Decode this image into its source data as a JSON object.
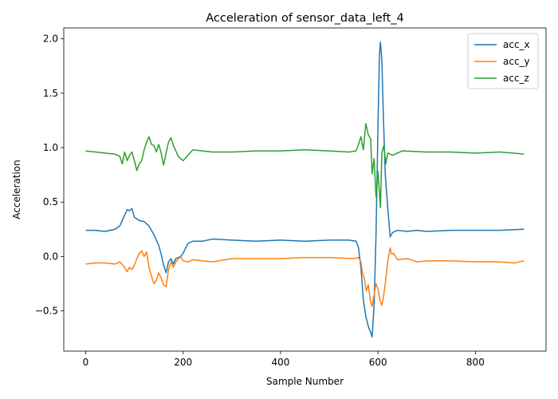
{
  "chart_data": {
    "type": "line",
    "title": "Acceleration of sensor_data_left_4",
    "xlabel": "Sample Number",
    "ylabel": "Acceleration",
    "xlim": [
      -45,
      945
    ],
    "ylim": [
      -0.87,
      2.1
    ],
    "x_ticks": [
      0,
      200,
      400,
      600,
      800
    ],
    "x_tick_labels": [
      "0",
      "200",
      "400",
      "600",
      "800"
    ],
    "y_ticks": [
      -0.5,
      0.0,
      0.5,
      1.0,
      1.5,
      2.0
    ],
    "y_tick_labels": [
      "−0.5",
      "0.0",
      "0.5",
      "1.0",
      "1.5",
      "2.0"
    ],
    "grid": false,
    "legend": {
      "position": "top-right"
    },
    "series": [
      {
        "name": "acc_x",
        "color": "#1f77b4",
        "points": [
          [
            0,
            0.24
          ],
          [
            20,
            0.24
          ],
          [
            40,
            0.23
          ],
          [
            60,
            0.25
          ],
          [
            70,
            0.28
          ],
          [
            80,
            0.38
          ],
          [
            85,
            0.43
          ],
          [
            90,
            0.42
          ],
          [
            95,
            0.44
          ],
          [
            100,
            0.36
          ],
          [
            110,
            0.33
          ],
          [
            120,
            0.32
          ],
          [
            130,
            0.28
          ],
          [
            140,
            0.2
          ],
          [
            150,
            0.1
          ],
          [
            155,
            0.02
          ],
          [
            160,
            -0.08
          ],
          [
            165,
            -0.15
          ],
          [
            170,
            -0.05
          ],
          [
            175,
            -0.02
          ],
          [
            180,
            -0.07
          ],
          [
            185,
            -0.02
          ],
          [
            195,
            0.0
          ],
          [
            200,
            0.03
          ],
          [
            210,
            0.12
          ],
          [
            220,
            0.14
          ],
          [
            240,
            0.14
          ],
          [
            260,
            0.16
          ],
          [
            300,
            0.15
          ],
          [
            350,
            0.14
          ],
          [
            400,
            0.15
          ],
          [
            450,
            0.14
          ],
          [
            500,
            0.15
          ],
          [
            540,
            0.15
          ],
          [
            555,
            0.14
          ],
          [
            560,
            0.08
          ],
          [
            565,
            -0.1
          ],
          [
            570,
            -0.4
          ],
          [
            575,
            -0.55
          ],
          [
            580,
            -0.64
          ],
          [
            585,
            -0.7
          ],
          [
            588,
            -0.74
          ],
          [
            592,
            -0.45
          ],
          [
            596,
            0.2
          ],
          [
            600,
            1.2
          ],
          [
            603,
            1.85
          ],
          [
            605,
            1.97
          ],
          [
            608,
            1.8
          ],
          [
            611,
            1.3
          ],
          [
            615,
            0.75
          ],
          [
            620,
            0.45
          ],
          [
            625,
            0.18
          ],
          [
            630,
            0.22
          ],
          [
            640,
            0.24
          ],
          [
            660,
            0.23
          ],
          [
            680,
            0.24
          ],
          [
            700,
            0.23
          ],
          [
            750,
            0.24
          ],
          [
            800,
            0.24
          ],
          [
            850,
            0.24
          ],
          [
            900,
            0.25
          ]
        ]
      },
      {
        "name": "acc_y",
        "color": "#ff7f0e",
        "points": [
          [
            0,
            -0.07
          ],
          [
            20,
            -0.06
          ],
          [
            40,
            -0.06
          ],
          [
            60,
            -0.07
          ],
          [
            70,
            -0.05
          ],
          [
            80,
            -0.1
          ],
          [
            85,
            -0.14
          ],
          [
            90,
            -0.1
          ],
          [
            95,
            -0.12
          ],
          [
            100,
            -0.08
          ],
          [
            105,
            -0.02
          ],
          [
            110,
            0.03
          ],
          [
            115,
            0.05
          ],
          [
            120,
            0.0
          ],
          [
            125,
            0.04
          ],
          [
            130,
            -0.1
          ],
          [
            135,
            -0.18
          ],
          [
            140,
            -0.25
          ],
          [
            145,
            -0.22
          ],
          [
            150,
            -0.15
          ],
          [
            155,
            -0.2
          ],
          [
            160,
            -0.26
          ],
          [
            165,
            -0.28
          ],
          [
            170,
            -0.12
          ],
          [
            175,
            -0.05
          ],
          [
            180,
            -0.1
          ],
          [
            185,
            -0.05
          ],
          [
            195,
            0.0
          ],
          [
            200,
            -0.04
          ],
          [
            210,
            -0.05
          ],
          [
            220,
            -0.03
          ],
          [
            240,
            -0.04
          ],
          [
            260,
            -0.05
          ],
          [
            300,
            -0.02
          ],
          [
            350,
            -0.02
          ],
          [
            400,
            -0.02
          ],
          [
            450,
            -0.01
          ],
          [
            500,
            -0.01
          ],
          [
            550,
            -0.02
          ],
          [
            560,
            -0.01
          ],
          [
            565,
            -0.05
          ],
          [
            568,
            -0.15
          ],
          [
            572,
            -0.2
          ],
          [
            576,
            -0.32
          ],
          [
            580,
            -0.26
          ],
          [
            585,
            -0.42
          ],
          [
            588,
            -0.46
          ],
          [
            592,
            -0.35
          ],
          [
            596,
            -0.25
          ],
          [
            600,
            -0.3
          ],
          [
            604,
            -0.4
          ],
          [
            608,
            -0.45
          ],
          [
            612,
            -0.35
          ],
          [
            615,
            -0.25
          ],
          [
            620,
            -0.05
          ],
          [
            625,
            0.08
          ],
          [
            628,
            0.02
          ],
          [
            632,
            0.03
          ],
          [
            640,
            -0.03
          ],
          [
            660,
            -0.02
          ],
          [
            680,
            -0.05
          ],
          [
            700,
            -0.04
          ],
          [
            750,
            -0.04
          ],
          [
            800,
            -0.05
          ],
          [
            850,
            -0.05
          ],
          [
            880,
            -0.06
          ],
          [
            900,
            -0.04
          ]
        ]
      },
      {
        "name": "acc_z",
        "color": "#2ca02c",
        "points": [
          [
            0,
            0.97
          ],
          [
            20,
            0.96
          ],
          [
            40,
            0.95
          ],
          [
            60,
            0.94
          ],
          [
            70,
            0.92
          ],
          [
            75,
            0.85
          ],
          [
            80,
            0.96
          ],
          [
            85,
            0.88
          ],
          [
            90,
            0.93
          ],
          [
            95,
            0.96
          ],
          [
            100,
            0.88
          ],
          [
            105,
            0.79
          ],
          [
            110,
            0.85
          ],
          [
            115,
            0.88
          ],
          [
            120,
            0.98
          ],
          [
            125,
            1.05
          ],
          [
            130,
            1.1
          ],
          [
            135,
            1.03
          ],
          [
            140,
            1.02
          ],
          [
            145,
            0.96
          ],
          [
            150,
            1.03
          ],
          [
            155,
            0.95
          ],
          [
            160,
            0.84
          ],
          [
            165,
            0.95
          ],
          [
            170,
            1.05
          ],
          [
            175,
            1.09
          ],
          [
            180,
            1.02
          ],
          [
            185,
            0.97
          ],
          [
            190,
            0.92
          ],
          [
            200,
            0.88
          ],
          [
            210,
            0.93
          ],
          [
            220,
            0.98
          ],
          [
            240,
            0.97
          ],
          [
            260,
            0.96
          ],
          [
            300,
            0.96
          ],
          [
            350,
            0.97
          ],
          [
            400,
            0.97
          ],
          [
            450,
            0.98
          ],
          [
            500,
            0.97
          ],
          [
            540,
            0.96
          ],
          [
            555,
            0.97
          ],
          [
            560,
            1.03
          ],
          [
            565,
            1.1
          ],
          [
            570,
            0.98
          ],
          [
            575,
            1.22
          ],
          [
            580,
            1.12
          ],
          [
            585,
            1.08
          ],
          [
            588,
            0.76
          ],
          [
            592,
            0.9
          ],
          [
            596,
            0.55
          ],
          [
            600,
            0.78
          ],
          [
            605,
            0.45
          ],
          [
            608,
            0.95
          ],
          [
            612,
            1.02
          ],
          [
            616,
            0.85
          ],
          [
            620,
            0.95
          ],
          [
            630,
            0.93
          ],
          [
            640,
            0.95
          ],
          [
            650,
            0.97
          ],
          [
            700,
            0.96
          ],
          [
            750,
            0.96
          ],
          [
            800,
            0.95
          ],
          [
            850,
            0.96
          ],
          [
            900,
            0.94
          ]
        ]
      }
    ]
  }
}
